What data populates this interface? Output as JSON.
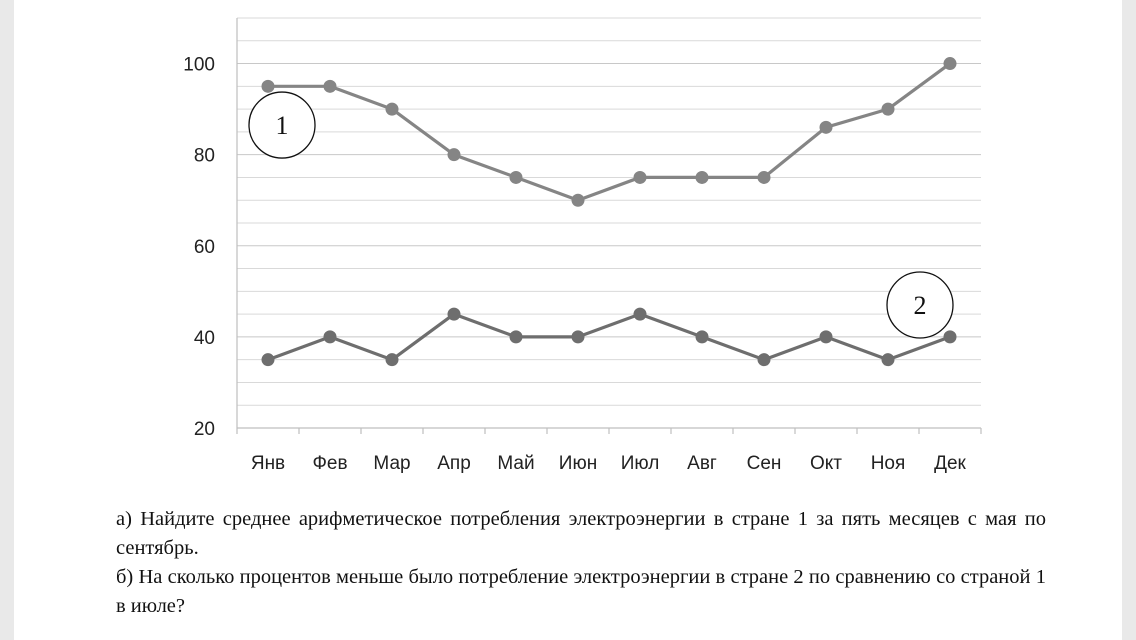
{
  "chart_data": {
    "type": "line",
    "categories": [
      "Янв",
      "Фев",
      "Мар",
      "Апр",
      "Май",
      "Июн",
      "Июл",
      "Авг",
      "Сен",
      "Окт",
      "Ноя",
      "Дек"
    ],
    "series": [
      {
        "name": "1",
        "values": [
          95,
          95,
          90,
          80,
          75,
          70,
          75,
          75,
          75,
          86,
          90,
          100
        ],
        "color": "#858585"
      },
      {
        "name": "2",
        "values": [
          35,
          40,
          35,
          45,
          40,
          40,
          45,
          40,
          35,
          40,
          35,
          40
        ],
        "color": "#6e6e6e"
      }
    ],
    "ylim": [
      20,
      110
    ],
    "yticks": [
      20,
      40,
      60,
      80,
      100
    ],
    "minor_grid_step": 5,
    "grid": true,
    "xlabel": "",
    "ylabel": "",
    "title": "",
    "gridline_color": "#d9d9d9",
    "axis_color": "#bfbfbf"
  },
  "questions": {
    "a": "а) Найдите среднее арифметическое потребления электроэнергии в стране 1 за пять месяцев с мая по сентябрь.",
    "b": "б) На сколько процентов меньше было потребление электроэнергии в стране 2 по сравнению со страной 1 в июле?"
  }
}
